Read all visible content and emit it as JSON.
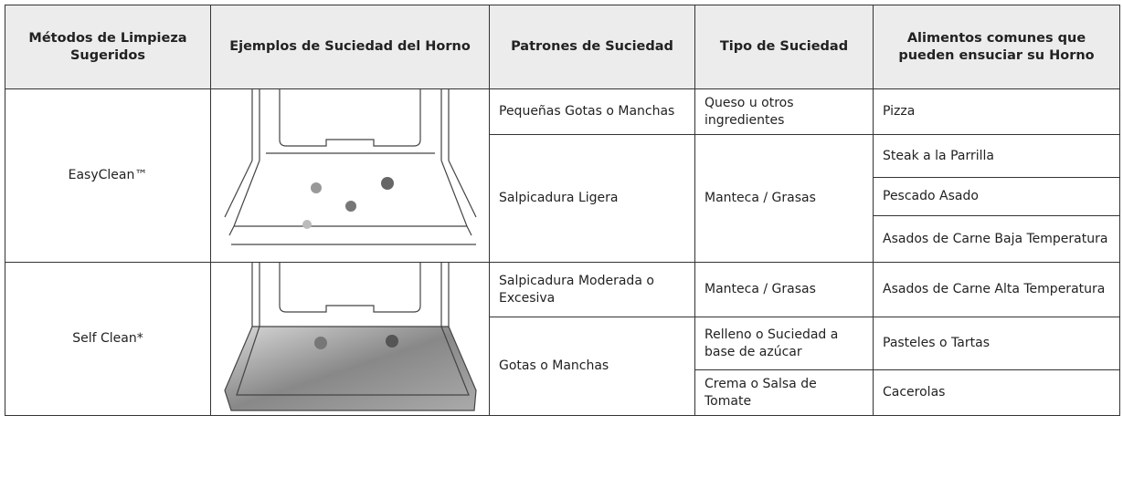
{
  "table": {
    "headers": [
      "Métodos de Limpieza Sugeridos",
      "Ejemplos de Suciedad del Horno",
      "Patrones de Suciedad",
      "Tipo de Suciedad",
      "Alimentos comunes que pueden ensuciar su Horno"
    ],
    "groups": [
      {
        "method": "EasyClean™",
        "patterns": [
          {
            "label": "Pequeñas Gotas o Manchas",
            "soils": [
              {
                "type": "Queso u otros ingredientes",
                "foods": [
                  "Pizza"
                ]
              }
            ]
          },
          {
            "label": "Salpicadura Ligera",
            "soils": [
              {
                "type": "Manteca / Grasas",
                "foods": [
                  "Steak a la Parrilla",
                  "Pescado Asado",
                  "Asados de Carne Baja Temperatura"
                ]
              }
            ]
          }
        ]
      },
      {
        "method": "Self Clean*",
        "patterns": [
          {
            "label": "Salpicadura Moderada o Excesiva",
            "soils": [
              {
                "type": "Manteca / Grasas",
                "foods": [
                  "Asados de Carne Alta Temperatura"
                ]
              }
            ]
          },
          {
            "label": "Gotas o Manchas",
            "soils": [
              {
                "type": "Relleno o Suciedad a base de azúcar",
                "foods": [
                  "Pasteles o Tartas"
                ]
              },
              {
                "type": "Crema o Salsa de Tomate",
                "foods": [
                  "Cacerolas"
                ]
              }
            ]
          }
        ]
      }
    ]
  }
}
